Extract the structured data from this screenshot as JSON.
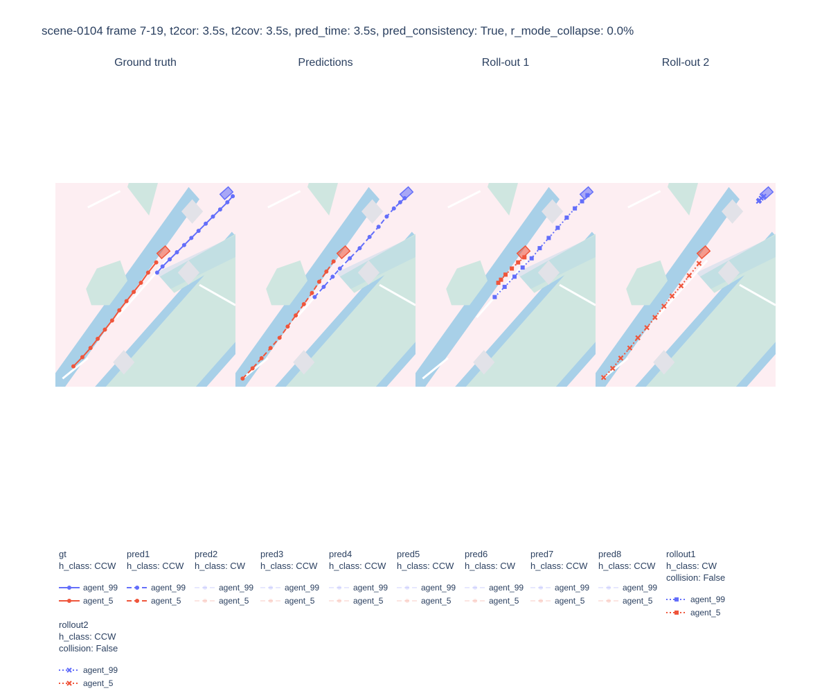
{
  "chart_data": {
    "type": "line",
    "title": "scene-0104 frame 7-19, t2cor: 3.5s, t2cov: 3.5s, pred_time: 3.5s, pred_consistency: True, r_mode_collapse: 0.0%",
    "xlim": [
      0,
      100
    ],
    "ylim": [
      0,
      100
    ],
    "grid": false,
    "legend_placement": "bottom",
    "colors": {
      "agent_99": "#636efa",
      "agent_5": "#ef553b",
      "map_background": "#fdeef2",
      "walkway": "#cfe6e0",
      "lane_edge": "#a8d0e8",
      "crossing": "#e2e2e8",
      "marking": "#ffffff"
    },
    "panels": [
      {
        "title": "Ground truth",
        "series": [
          {
            "name": "agent_99",
            "legend_group": "gt",
            "style": "solid",
            "marker": "circle",
            "opacity": 1,
            "x": [
              56.5,
              59.5,
              63.5,
              67.5,
              71.5,
              75.5,
              79.5,
              83.5,
              87.5,
              91.5,
              95.5,
              98.5
            ],
            "y": [
              56.0,
              59.0,
              62.5,
              66.0,
              69.5,
              73.0,
              76.5,
              80.0,
              83.5,
              87.0,
              90.5,
              93.5
            ]
          },
          {
            "name": "agent_5",
            "legend_group": "gt",
            "style": "solid",
            "marker": "circle",
            "opacity": 1,
            "x": [
              10.0,
              15.0,
              19.5,
              23.5,
              27.5,
              31.5,
              35.5,
              39.5,
              43.5,
              47.5,
              51.5,
              56.0
            ],
            "y": [
              10.0,
              14.5,
              19.0,
              23.5,
              28.0,
              32.5,
              37.5,
              42.0,
              46.5,
              51.0,
              56.0,
              61.0
            ]
          }
        ]
      },
      {
        "title": "Predictions",
        "series": [
          {
            "name": "agent_99",
            "legend_group": "pred1",
            "style": "dash",
            "marker": "circle",
            "opacity": 1,
            "x": [
              44.0,
              49.0,
              54.0,
              58.0,
              63.5,
              69.0,
              74.5,
              79.5,
              84.0,
              88.0,
              91.5,
              94.0
            ],
            "y": [
              44.0,
              49.0,
              54.0,
              58.0,
              63.0,
              68.0,
              73.5,
              78.5,
              83.5,
              87.5,
              90.5,
              92.5
            ]
          },
          {
            "name": "agent_5",
            "legend_group": "pred1",
            "style": "dash",
            "marker": "circle",
            "opacity": 1,
            "x": [
              4.0,
              9.5,
              14.5,
              19.5,
              24.5,
              29.0,
              33.5,
              38.0,
              42.5,
              46.5,
              50.5,
              54.5
            ],
            "y": [
              4.0,
              9.0,
              14.0,
              19.0,
              24.0,
              29.5,
              35.0,
              40.5,
              46.0,
              51.5,
              56.5,
              61.5
            ]
          }
        ]
      },
      {
        "title": "Roll-out 1",
        "series": [
          {
            "name": "agent_99",
            "legend_group": "rollout1",
            "style": "dot",
            "marker": "square",
            "opacity": 1,
            "x": [
              44.0,
              49.5,
              55.0,
              59.5,
              64.5,
              69.0,
              74.0,
              79.0,
              84.0,
              88.5,
              92.5,
              95.5
            ],
            "y": [
              44.0,
              49.0,
              54.0,
              58.5,
              63.0,
              68.0,
              73.0,
              78.0,
              83.0,
              87.5,
              91.0,
              94.0
            ]
          },
          {
            "name": "agent_5",
            "legend_group": "rollout1",
            "style": "dot",
            "marker": "square",
            "opacity": 1,
            "x": [
              46.0,
              47.5,
              50.0,
              53.5,
              57.0,
              60.5
            ],
            "y": [
              51.0,
              52.5,
              55.0,
              58.0,
              61.0,
              63.5
            ]
          }
        ]
      },
      {
        "title": "Roll-out 2",
        "series": [
          {
            "name": "agent_99",
            "legend_group": "rollout2",
            "style": "dot",
            "marker": "x",
            "opacity": 1,
            "x": [
              90.5,
              91.0,
              92.0,
              93.5
            ],
            "y": [
              91.0,
              91.5,
              92.5,
              93.5
            ]
          },
          {
            "name": "agent_5",
            "legend_group": "rollout2",
            "style": "dot",
            "marker": "x",
            "opacity": 1,
            "x": [
              4.5,
              9.5,
              14.0,
              19.0,
              23.5,
              28.5,
              33.0,
              38.0,
              42.5,
              47.5,
              52.0,
              57.5
            ],
            "y": [
              4.5,
              9.0,
              14.0,
              19.0,
              24.0,
              29.0,
              34.0,
              39.5,
              44.5,
              49.5,
              54.5,
              60.5
            ]
          }
        ]
      }
    ],
    "legend_groups": [
      {
        "id": "gt",
        "title": "gt",
        "lines": [
          "h_class: CCW"
        ],
        "style": "solid",
        "marker": "circle",
        "opacity": 1
      },
      {
        "id": "pred1",
        "title": "pred1",
        "lines": [
          "h_class: CCW"
        ],
        "style": "dash",
        "marker": "circle",
        "opacity": 1
      },
      {
        "id": "pred2",
        "title": "pred2",
        "lines": [
          "h_class: CW"
        ],
        "style": "dash",
        "marker": "circle",
        "opacity": 0.15
      },
      {
        "id": "pred3",
        "title": "pred3",
        "lines": [
          "h_class: CCW"
        ],
        "style": "dash",
        "marker": "circle",
        "opacity": 0.15
      },
      {
        "id": "pred4",
        "title": "pred4",
        "lines": [
          "h_class: CCW"
        ],
        "style": "dash",
        "marker": "circle",
        "opacity": 0.15
      },
      {
        "id": "pred5",
        "title": "pred5",
        "lines": [
          "h_class: CCW"
        ],
        "style": "dash",
        "marker": "circle",
        "opacity": 0.15
      },
      {
        "id": "pred6",
        "title": "pred6",
        "lines": [
          "h_class: CW"
        ],
        "style": "dash",
        "marker": "circle",
        "opacity": 0.15
      },
      {
        "id": "pred7",
        "title": "pred7",
        "lines": [
          "h_class: CCW"
        ],
        "style": "dash",
        "marker": "circle",
        "opacity": 0.15
      },
      {
        "id": "pred8",
        "title": "pred8",
        "lines": [
          "h_class: CCW"
        ],
        "style": "dash",
        "marker": "circle",
        "opacity": 0.15
      },
      {
        "id": "rollout1",
        "title": "rollout1",
        "lines": [
          "h_class: CW",
          "collision: False"
        ],
        "style": "dot",
        "marker": "square",
        "opacity": 1
      },
      {
        "id": "rollout2",
        "title": "rollout2",
        "lines": [
          "h_class: CCW",
          "collision: False"
        ],
        "style": "dot",
        "marker": "x",
        "opacity": 1
      }
    ],
    "legend_entries": [
      "agent_99",
      "agent_5"
    ]
  }
}
